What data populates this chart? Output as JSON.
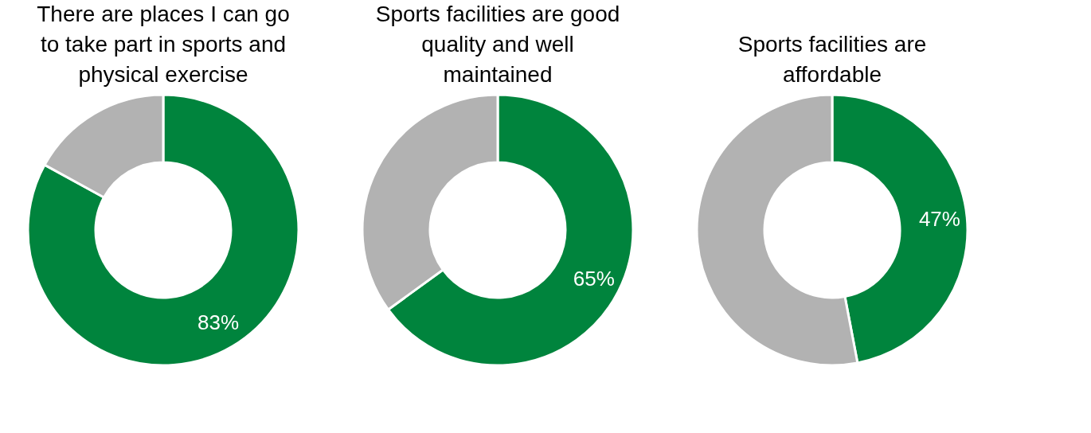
{
  "chart_data": [
    {
      "type": "donut",
      "title": "There are places I can go to take part in sports and physical exercise",
      "categories": [
        null,
        null
      ],
      "values": [
        83,
        17
      ],
      "colors": [
        "#00843d",
        "#b2b2b2"
      ],
      "value_labels": [
        "83%",
        null
      ]
    },
    {
      "type": "donut",
      "title": "Sports facilities are good quality and well maintained",
      "categories": [
        null,
        null
      ],
      "values": [
        65,
        35
      ],
      "colors": [
        "#00843d",
        "#b2b2b2"
      ],
      "value_labels": [
        "65%",
        null
      ]
    },
    {
      "type": "donut",
      "title": "Sports facilities are affordable",
      "categories": [
        null,
        null
      ],
      "values": [
        47,
        53
      ],
      "colors": [
        "#00843d",
        "#b2b2b2"
      ],
      "value_labels": [
        "47%",
        null
      ]
    }
  ]
}
